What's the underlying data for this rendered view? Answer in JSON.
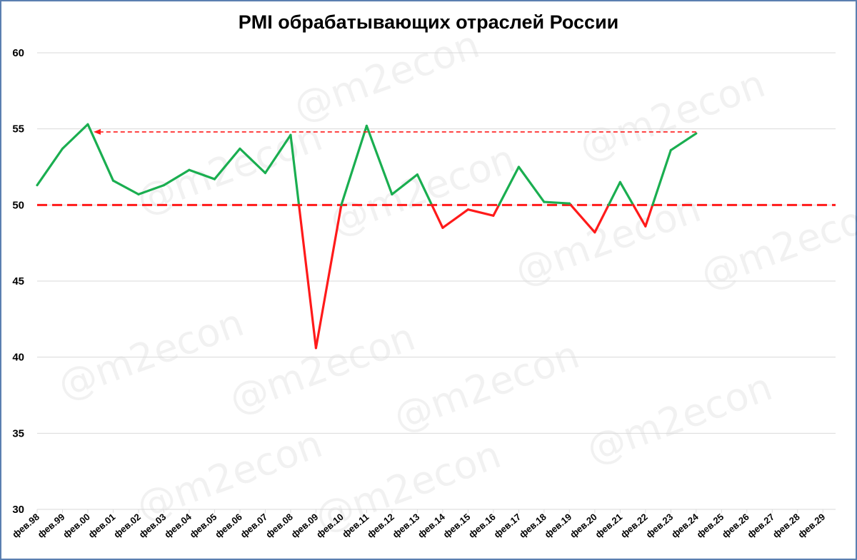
{
  "chart_data": {
    "type": "line",
    "title": "PMI обрабатывающих отраслей России",
    "watermark": "@m2econ",
    "x": [
      "фев.98",
      "фев.99",
      "фев.00",
      "фев.01",
      "фев.02",
      "фев.03",
      "фев.04",
      "фев.05",
      "фев.06",
      "фев.07",
      "фев.08",
      "фев.09",
      "фев.10",
      "фев.11",
      "фев.12",
      "фев.13",
      "фев.14",
      "фев.15",
      "фев.16",
      "фев.17",
      "фев.18",
      "фев.19",
      "фев.20",
      "фев.21",
      "фев.22",
      "фев.23",
      "фев.24",
      "фев.25",
      "фев.26",
      "фев.27",
      "фев.28",
      "фев.29"
    ],
    "series": [
      {
        "values": [
          51.3,
          53.7,
          55.3,
          51.6,
          50.7,
          51.3,
          52.3,
          51.7,
          53.7,
          52.1,
          54.6,
          40.6,
          50.0,
          55.2,
          50.7,
          52.0,
          48.5,
          49.7,
          49.3,
          52.5,
          50.2,
          50.1,
          48.2,
          51.5,
          48.6,
          53.6,
          54.7,
          null,
          null,
          null,
          null,
          null
        ]
      }
    ],
    "ylim": [
      30,
      60
    ],
    "yticks": [
      30,
      35,
      40,
      45,
      50,
      55,
      60
    ],
    "grid": true,
    "threshold": 50,
    "reference_arrow": {
      "from": "фев.24",
      "to": "фев.00",
      "value": 54.8
    },
    "colors": {
      "above": "#1aae50",
      "below": "#ff1a1a",
      "threshold": "#ff1a1a",
      "grid": "#d9d9d9"
    }
  }
}
